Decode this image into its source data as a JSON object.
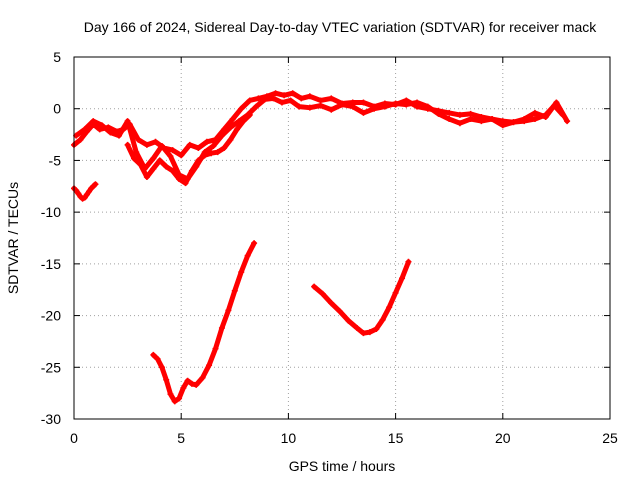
{
  "chart_data": {
    "type": "scatter",
    "title": "Day 166 of 2024, Sidereal Day-to-day VTEC variation (SDTVAR) for receiver mack",
    "xlabel": "GPS time / hours",
    "ylabel": "SDTVAR / TECUs",
    "xlim": [
      0,
      25
    ],
    "ylim": [
      -30,
      5
    ],
    "xticks": [
      0,
      5,
      10,
      15,
      20,
      25
    ],
    "yticks": [
      5,
      0,
      -5,
      -10,
      -15,
      -20,
      -25,
      -30
    ],
    "xtick_labels": [
      "0",
      "5",
      "10",
      "15",
      "20",
      "25"
    ],
    "ytick_labels": [
      "5",
      "0",
      "-5",
      "-10",
      "-15",
      "-20",
      "-25",
      "-30"
    ],
    "grid": true,
    "marker_color": "#ff0000",
    "series": [
      {
        "name": "upper-band-a",
        "x": [
          0,
          0.3,
          0.6,
          0.9,
          1.2,
          1.6,
          2.0,
          2.3,
          2.6,
          3.0,
          3.4,
          3.8,
          4.2,
          4.6,
          5.0,
          5.4,
          5.8,
          6.2,
          6.6,
          7.0,
          7.4,
          7.8,
          8.2,
          8.6,
          9.0,
          9.4,
          9.8,
          10.2,
          10.6,
          11.0,
          11.5,
          12.0,
          12.5,
          13.0,
          13.5,
          14.0,
          14.5,
          15.0,
          15.5,
          16.0,
          16.5,
          17.0,
          17.5,
          18.0,
          18.5,
          19.0,
          19.5,
          20.0,
          20.5,
          21.0,
          21.5,
          22.0,
          22.4,
          22.8
        ],
        "y": [
          -3.5,
          -3.0,
          -2.2,
          -1.5,
          -2.0,
          -1.8,
          -2.2,
          -2.0,
          -1.5,
          -3.0,
          -3.5,
          -3.2,
          -3.8,
          -4.0,
          -4.5,
          -3.5,
          -3.8,
          -3.2,
          -3.0,
          -2.0,
          -1.0,
          0.0,
          0.8,
          1.0,
          1.2,
          1.5,
          1.3,
          1.5,
          1.0,
          1.2,
          0.8,
          1.0,
          0.5,
          0.6,
          0.6,
          0.2,
          0.5,
          0.4,
          0.8,
          0.2,
          0.0,
          -0.2,
          -0.4,
          -0.6,
          -0.5,
          -0.8,
          -1.0,
          -1.2,
          -1.3,
          -1.2,
          -1.0,
          -0.6,
          0.3,
          -0.6
        ]
      },
      {
        "name": "upper-band-b",
        "x": [
          0.1,
          0.5,
          0.9,
          1.3,
          1.7,
          2.1,
          2.5,
          2.9,
          3.3,
          3.7,
          4.1,
          4.5,
          4.9,
          5.3,
          5.7,
          6.1,
          6.5,
          6.9,
          7.3,
          7.7,
          8.1,
          8.5,
          8.9,
          9.3,
          9.7,
          10.1,
          10.5,
          11.0,
          11.5,
          12.0,
          12.5,
          13.0,
          13.5,
          14.0,
          14.5,
          15.0,
          15.5,
          16.0,
          16.5,
          17.0,
          17.5,
          18.0,
          18.5,
          19.0,
          19.5,
          20.0,
          20.5,
          21.0,
          21.5,
          22.0,
          22.5,
          23.0
        ],
        "y": [
          -2.6,
          -2.0,
          -1.2,
          -1.6,
          -2.3,
          -2.6,
          -1.2,
          -4.2,
          -5.8,
          -4.8,
          -3.6,
          -4.6,
          -6.4,
          -6.8,
          -5.6,
          -4.2,
          -3.6,
          -2.6,
          -1.8,
          -1.2,
          -0.6,
          0.2,
          0.9,
          1.0,
          0.6,
          0.8,
          0.2,
          0.1,
          0.3,
          -0.1,
          0.4,
          0.2,
          -0.4,
          0.0,
          0.2,
          0.5,
          0.4,
          0.6,
          0.2,
          -0.5,
          -1.0,
          -1.4,
          -1.0,
          -1.2,
          -1.0,
          -1.6,
          -1.3,
          -1.0,
          -0.4,
          -0.8,
          0.6,
          -1.2
        ]
      },
      {
        "name": "upper-band-c",
        "x": [
          2.5,
          2.8,
          3.1,
          3.4,
          3.7,
          4.0,
          4.3,
          4.6,
          4.9,
          5.2,
          5.5,
          5.8,
          6.1,
          6.4,
          6.7,
          7.0,
          7.3,
          7.6,
          7.9,
          8.2
        ],
        "y": [
          -3.5,
          -4.8,
          -5.4,
          -6.6,
          -5.8,
          -5.0,
          -5.6,
          -6.0,
          -6.8,
          -7.2,
          -6.0,
          -5.0,
          -4.5,
          -4.3,
          -4.2,
          -3.8,
          -3.0,
          -2.0,
          -1.2,
          -0.6
        ]
      },
      {
        "name": "early-short-segment",
        "x": [
          0,
          0.1,
          0.2,
          0.3,
          0.4,
          0.5,
          0.6,
          0.7,
          0.8,
          0.9,
          1.0
        ],
        "y": [
          -7.7,
          -7.9,
          -8.2,
          -8.5,
          -8.7,
          -8.6,
          -8.3,
          -8.0,
          -7.7,
          -7.5,
          -7.3
        ]
      },
      {
        "name": "deep-arc-1",
        "x": [
          3.7,
          3.9,
          4.1,
          4.3,
          4.5,
          4.7,
          4.9,
          5.1,
          5.3,
          5.5,
          5.7,
          6.0,
          6.3,
          6.6,
          6.9,
          7.2,
          7.5,
          7.8,
          8.1,
          8.4
        ],
        "y": [
          -23.8,
          -24.2,
          -25.0,
          -26.2,
          -27.6,
          -28.3,
          -28.0,
          -27.0,
          -26.3,
          -26.6,
          -26.7,
          -26.0,
          -24.8,
          -23.2,
          -21.2,
          -19.5,
          -17.6,
          -15.8,
          -14.2,
          -13.0
        ]
      },
      {
        "name": "deep-arc-2",
        "x": [
          11.2,
          11.6,
          12.0,
          12.4,
          12.8,
          13.2,
          13.5,
          13.8,
          14.1,
          14.4,
          14.7,
          15.0,
          15.3,
          15.6
        ],
        "y": [
          -17.2,
          -17.9,
          -18.8,
          -19.6,
          -20.5,
          -21.2,
          -21.7,
          -21.6,
          -21.3,
          -20.4,
          -19.2,
          -17.8,
          -16.4,
          -14.8
        ]
      }
    ]
  }
}
